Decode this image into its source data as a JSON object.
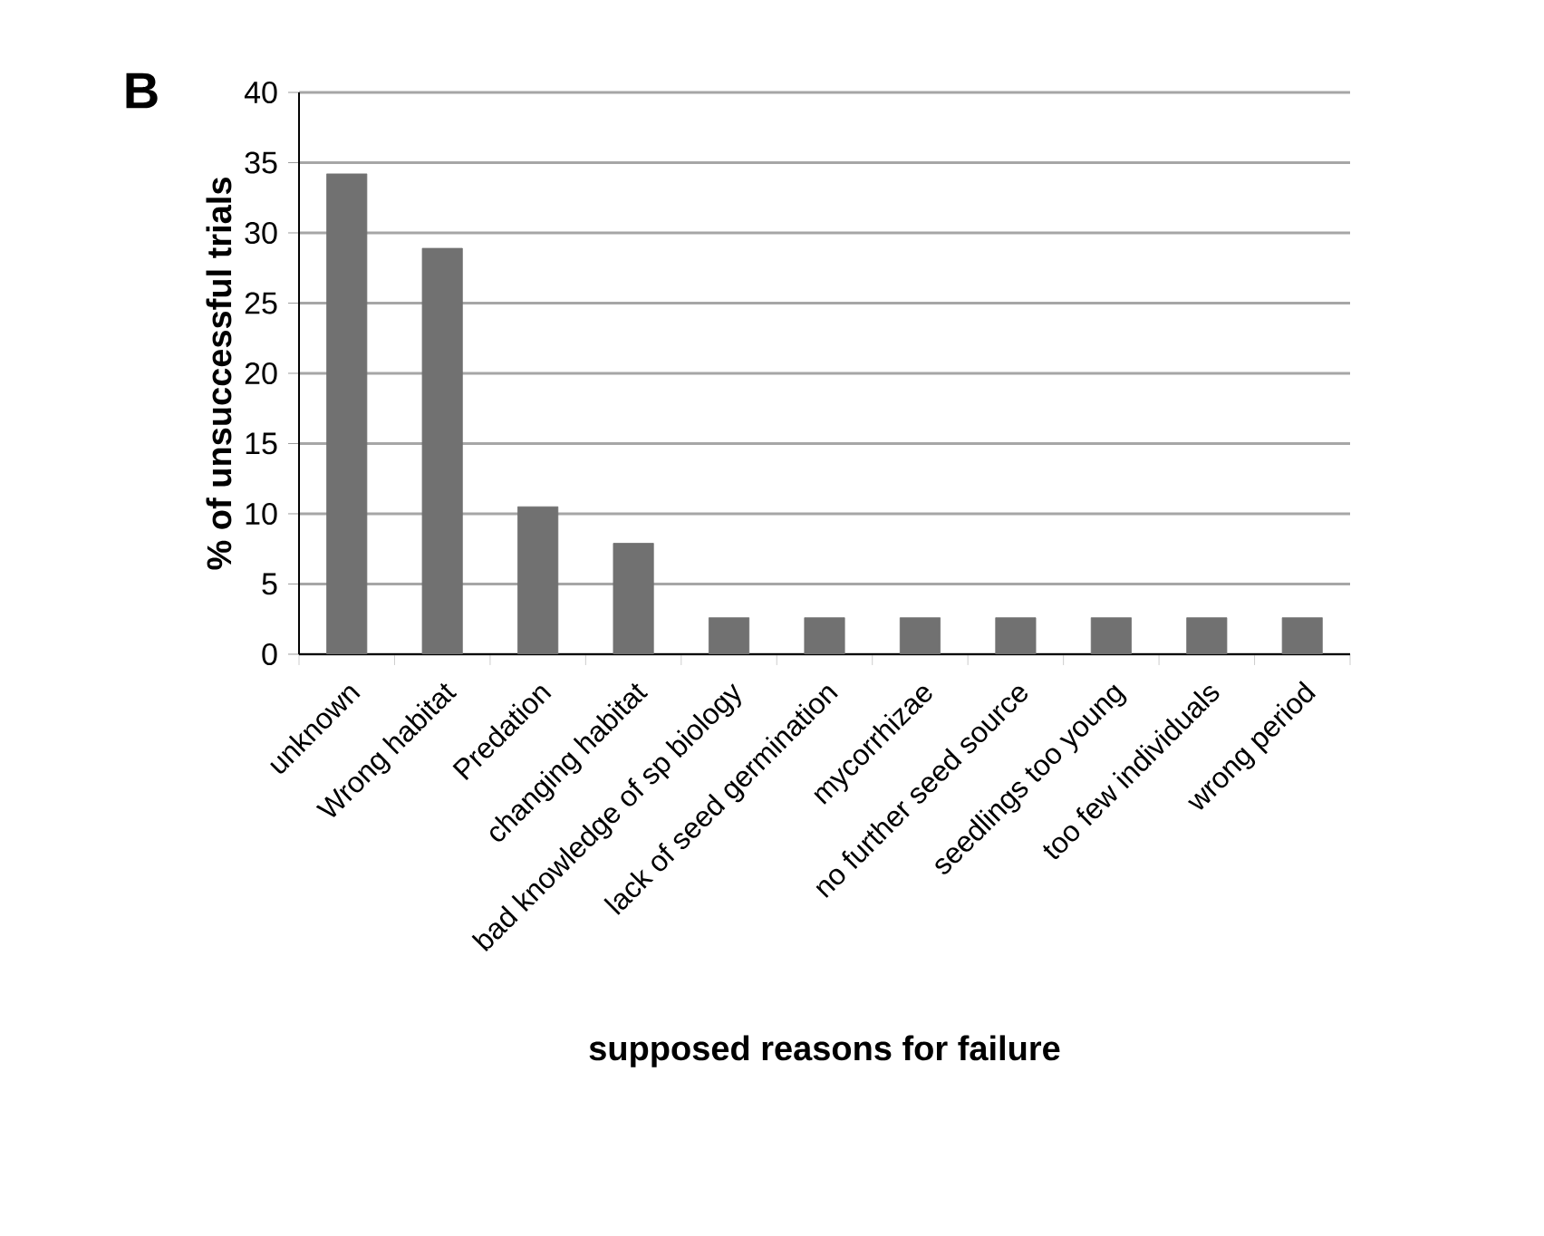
{
  "chart_data": {
    "type": "bar",
    "annotations": [
      "B"
    ],
    "xlabel": "supposed reasons for failure",
    "ylabel": "% of unsuccessful trials",
    "categories": [
      "unknown",
      "Wrong habitat",
      "Predation",
      "changing habitat",
      "bad knowledge of sp biology",
      "lack of seed germination",
      "mycorrhizae",
      "no further seed source",
      "seedlings too young",
      "too few individuals",
      "wrong period"
    ],
    "values": [
      34.2,
      28.9,
      10.5,
      7.9,
      2.6,
      2.6,
      2.6,
      2.6,
      2.6,
      2.6,
      2.6
    ],
    "color": "#717171",
    "ylim": [
      0,
      40
    ],
    "yticks": [
      0,
      5,
      10,
      15,
      20,
      25,
      30,
      35,
      40
    ],
    "grid": "y"
  }
}
